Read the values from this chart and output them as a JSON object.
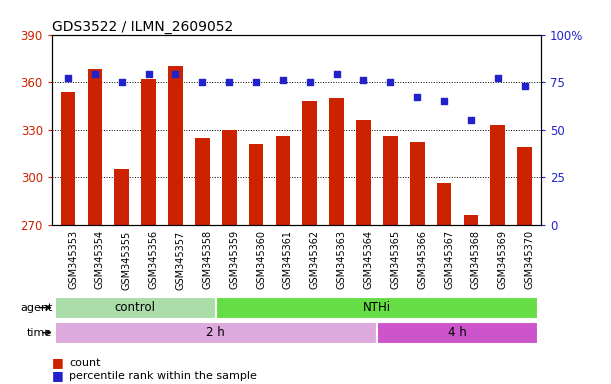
{
  "title": "GDS3522 / ILMN_2609052",
  "samples": [
    "GSM345353",
    "GSM345354",
    "GSM345355",
    "GSM345356",
    "GSM345357",
    "GSM345358",
    "GSM345359",
    "GSM345360",
    "GSM345361",
    "GSM345362",
    "GSM345363",
    "GSM345364",
    "GSM345365",
    "GSM345366",
    "GSM345367",
    "GSM345368",
    "GSM345369",
    "GSM345370"
  ],
  "counts": [
    354,
    368,
    305,
    362,
    370,
    325,
    330,
    321,
    326,
    348,
    350,
    336,
    326,
    322,
    296,
    276,
    333,
    319
  ],
  "percentile_ranks": [
    77,
    79,
    75,
    79,
    79,
    75,
    75,
    75,
    76,
    75,
    79,
    76,
    75,
    67,
    65,
    55,
    77,
    73
  ],
  "ylim_left": [
    270,
    390
  ],
  "ylim_right": [
    0,
    100
  ],
  "yticks_left": [
    270,
    300,
    330,
    360,
    390
  ],
  "yticks_right": [
    0,
    25,
    50,
    75,
    100
  ],
  "bar_color": "#cc2200",
  "dot_color": "#2222cc",
  "plot_bg": "#ffffff",
  "label_bg": "#d8d8d8",
  "agent_control_color": "#aaddaa",
  "agent_nthi_color": "#66dd44",
  "time_2h_color": "#ddaadd",
  "time_4h_color": "#cc55cc",
  "agent_groups": [
    {
      "label": "control",
      "start": 0,
      "end": 5
    },
    {
      "label": "NTHi",
      "start": 6,
      "end": 17
    }
  ],
  "time_groups": [
    {
      "label": "2 h",
      "start": 0,
      "end": 11
    },
    {
      "label": "4 h",
      "start": 12,
      "end": 17
    }
  ],
  "legend_count_label": "count",
  "legend_percentile_label": "percentile rank within the sample"
}
